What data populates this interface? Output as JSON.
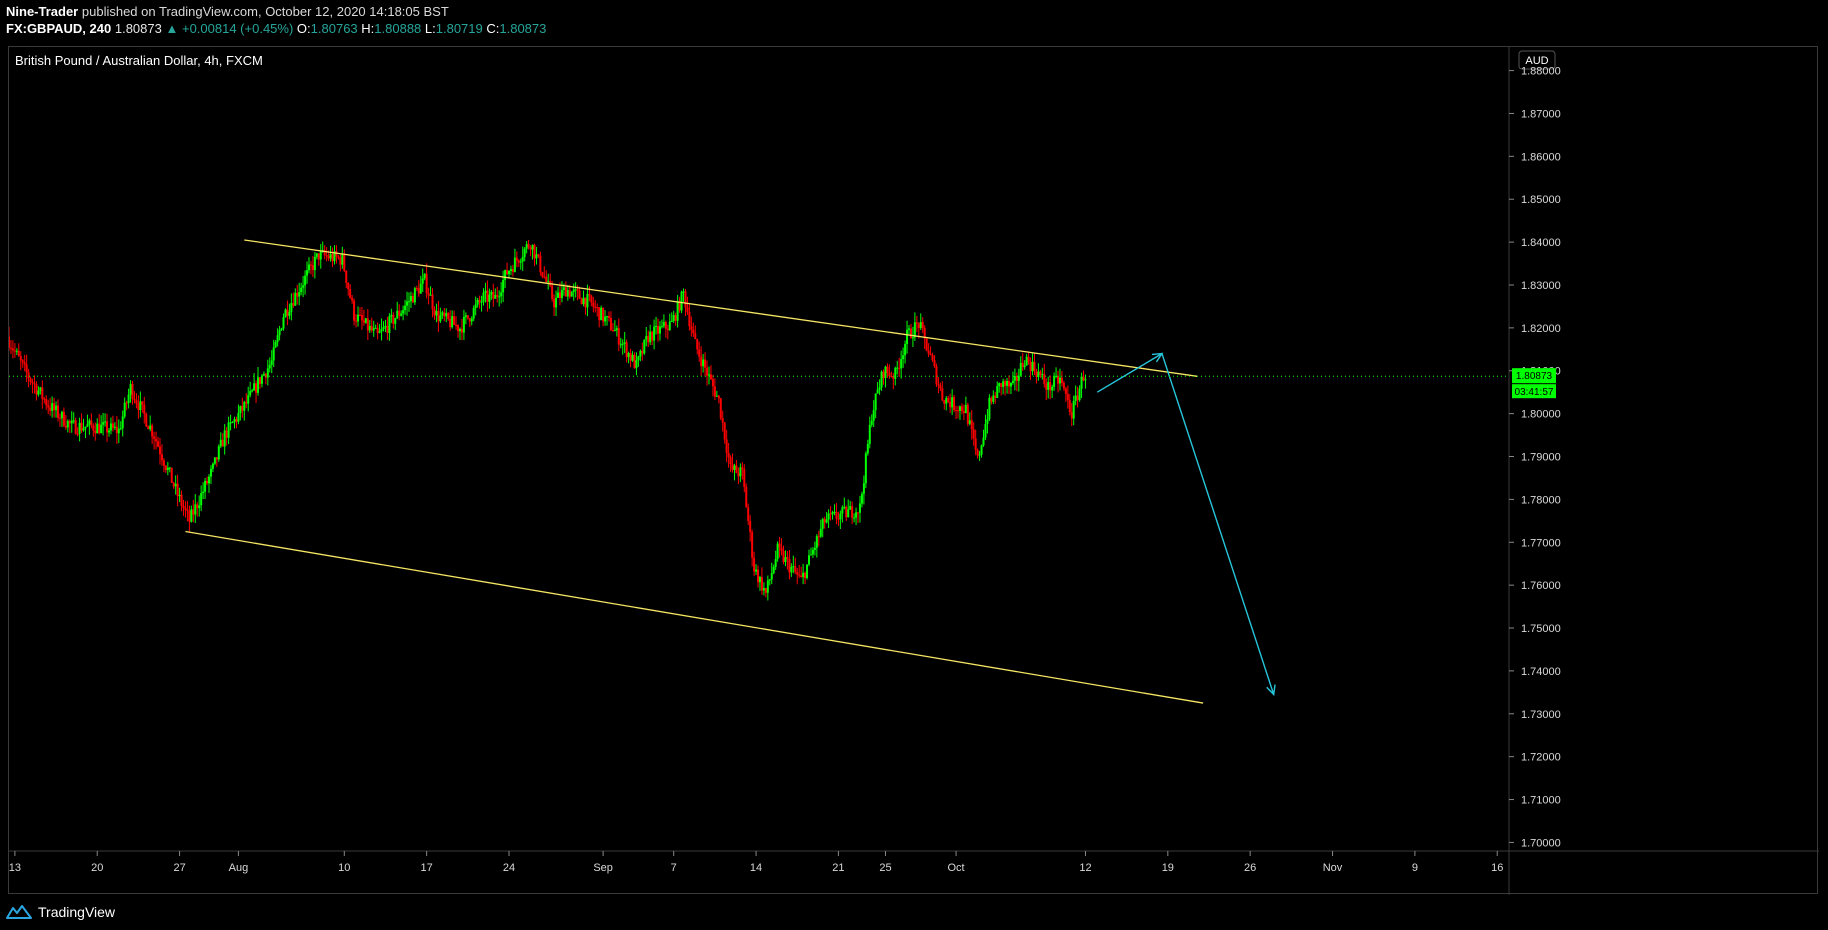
{
  "header": {
    "author": "Nine-Trader",
    "published_text": "published on TradingView.com, October 12, 2020 14:18:05 BST",
    "symbol": "FX:GBPAUD, 240",
    "last": "1.80873",
    "change": "+0.00814 (+0.45%)",
    "open_label": "O:",
    "open": "1.80763",
    "high_label": "H:",
    "high": "1.80888",
    "low_label": "L:",
    "low": "1.80719",
    "close_label": "C:",
    "close": "1.80873"
  },
  "footer": {
    "brand": "TradingView"
  },
  "colors": {
    "background": "#000000",
    "up_candle": "#00ff00",
    "down_candle": "#ff0000",
    "channel_line": "#f5e663",
    "arrow": "#26c6da",
    "price_line": "#00ff00",
    "axis_text": "#d9d9d9"
  },
  "chart_data": {
    "type": "candlestick",
    "title": "British Pound / Australian Dollar, 4h, FXCM",
    "currency_label": "AUD",
    "x_axis": {
      "ticks": [
        "13",
        "20",
        "27",
        "Aug",
        "10",
        "17",
        "24",
        "Sep",
        "7",
        "14",
        "21",
        "25",
        "Oct",
        "12",
        "19",
        "26",
        "Nov",
        "9",
        "16"
      ],
      "tick_days": [
        0,
        7,
        14,
        19,
        28,
        35,
        42,
        50,
        56,
        63,
        70,
        74,
        80,
        91,
        98,
        105,
        112,
        119,
        126
      ],
      "range_days": [
        -0.5,
        127
      ]
    },
    "y_axis": {
      "ylim": [
        1.698,
        1.8855
      ],
      "ticks": [
        "1.70000",
        "1.71000",
        "1.72000",
        "1.73000",
        "1.74000",
        "1.75000",
        "1.76000",
        "1.77000",
        "1.78000",
        "1.79000",
        "1.80000",
        "1.81000",
        "1.82000",
        "1.83000",
        "1.84000",
        "1.85000",
        "1.86000",
        "1.87000",
        "1.88000"
      ],
      "tick_values": [
        1.7,
        1.71,
        1.72,
        1.73,
        1.74,
        1.75,
        1.76,
        1.77,
        1.78,
        1.79,
        1.8,
        1.81,
        1.82,
        1.83,
        1.84,
        1.85,
        1.86,
        1.87,
        1.88
      ],
      "scale": "linear"
    },
    "current_price": {
      "value": 1.80873,
      "label": "1.80873",
      "countdown": "03:41:57"
    },
    "price_path": {
      "description_points_days": [
        -0.5,
        1,
        3,
        5,
        7,
        9,
        10,
        12,
        14,
        15,
        17,
        18,
        20,
        21,
        22,
        23,
        26,
        28,
        29,
        31,
        33,
        35,
        36,
        38,
        40,
        41,
        42,
        44,
        46,
        47,
        49,
        51,
        53,
        54,
        56,
        57,
        58,
        60,
        61,
        62,
        63,
        64,
        65,
        67,
        69,
        70,
        71,
        72,
        73,
        74,
        75,
        76,
        77,
        78,
        79,
        80,
        81,
        82,
        83,
        84,
        85,
        86,
        87,
        88,
        89,
        90,
        91
      ],
      "description_points_values": [
        1.818,
        1.81,
        1.802,
        1.797,
        1.797,
        1.796,
        1.806,
        1.795,
        1.781,
        1.775,
        1.787,
        1.795,
        1.803,
        1.808,
        1.812,
        1.823,
        1.837,
        1.836,
        1.823,
        1.818,
        1.824,
        1.831,
        1.823,
        1.82,
        1.827,
        1.827,
        1.833,
        1.84,
        1.826,
        1.829,
        1.826,
        1.82,
        1.811,
        1.818,
        1.821,
        1.828,
        1.816,
        1.803,
        1.787,
        1.786,
        1.764,
        1.758,
        1.768,
        1.761,
        1.775,
        1.776,
        1.777,
        1.778,
        1.8,
        1.81,
        1.809,
        1.818,
        1.821,
        1.813,
        1.804,
        1.802,
        1.801,
        1.789,
        1.802,
        1.807,
        1.806,
        1.813,
        1.81,
        1.806,
        1.808,
        1.8,
        1.809
      ]
    },
    "candles_count_note": "OHLC candles generated along price_path in render script",
    "drawings": {
      "channel_upper": {
        "x": [
          19.5,
          100.5
        ],
        "y": [
          1.8405,
          1.8087
        ]
      },
      "channel_lower": {
        "x": [
          14.5,
          101
        ],
        "y": [
          1.7725,
          1.7325
        ]
      },
      "arrow": {
        "x": [
          92,
          97.5,
          107
        ],
        "y": [
          1.805,
          1.814,
          1.7345
        ]
      }
    },
    "grid": false,
    "legend": "none"
  }
}
